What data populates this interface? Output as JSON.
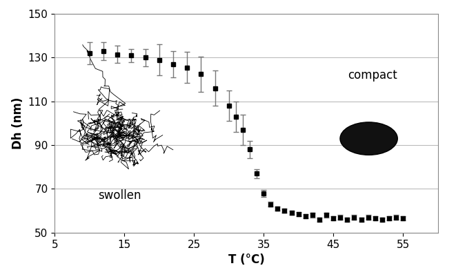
{
  "chart_data": {
    "type": "scatter",
    "x_label": "T (°C)",
    "y_label": "Dh (nm)",
    "annotations": [
      "swollen",
      "compact"
    ],
    "x": [
      10,
      12,
      14,
      16,
      18,
      20,
      22,
      24,
      26,
      28,
      30,
      31,
      32,
      33,
      34,
      35,
      36,
      37,
      38,
      39,
      40,
      41,
      42,
      43,
      44,
      45,
      46,
      47,
      48,
      49,
      50,
      51,
      52,
      53,
      54,
      55
    ],
    "values": [
      132,
      133,
      131.5,
      131,
      130,
      129,
      127,
      125.5,
      122.5,
      116,
      108,
      103,
      97,
      88,
      77,
      68,
      63,
      61,
      60,
      59,
      58.5,
      57.5,
      58,
      56,
      58,
      56.5,
      57,
      56,
      57,
      56,
      57,
      56.5,
      56,
      56.5,
      57,
      56.5
    ],
    "errors": [
      5,
      4,
      4,
      3,
      4,
      7,
      6,
      7,
      8,
      8,
      7,
      7,
      7,
      4,
      2,
      1.5,
      1,
      1,
      1,
      1,
      1,
      1,
      1,
      1,
      1,
      1,
      1,
      1,
      1,
      1,
      1,
      1,
      1,
      1,
      1,
      1
    ],
    "color": "#000000",
    "marker": "square",
    "xlim": [
      5,
      60
    ],
    "xticks": [
      5,
      15,
      25,
      35,
      45,
      55
    ],
    "ylim": [
      50,
      150
    ],
    "yticks": [
      50,
      70,
      90,
      110,
      130,
      150
    ],
    "grid": true
  }
}
